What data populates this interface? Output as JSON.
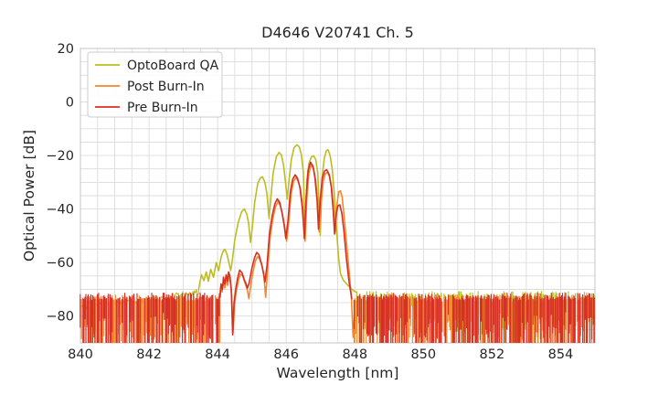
{
  "chart_data": {
    "type": "line",
    "title": "D4646 V20741 Ch. 5",
    "xlabel": "Wavelength [nm]",
    "ylabel": "Optical Power [dB]",
    "xlim": [
      840,
      855
    ],
    "ylim": [
      -90,
      20
    ],
    "x_ticks": [
      840,
      842,
      844,
      846,
      848,
      850,
      852,
      854
    ],
    "y_ticks": [
      20,
      0,
      -20,
      -40,
      -60,
      -80
    ],
    "minor_grid": {
      "x_step": 0.5,
      "y_step": 5
    },
    "grid_color": "#dcdcdc",
    "spine_color": "#c6c6c6",
    "background": "#ffffff",
    "legend": {
      "position": "upper-left"
    },
    "series": [
      {
        "name": "OptoBoard QA",
        "color": "#bcbd22",
        "curve": [
          [
            843.45,
            -69.5
          ],
          [
            843.53,
            -64.5
          ],
          [
            843.6,
            -66.8
          ],
          [
            843.67,
            -63.5
          ],
          [
            843.73,
            -67.0
          ],
          [
            843.8,
            -62.5
          ],
          [
            843.88,
            -65.5
          ],
          [
            843.96,
            -60.0
          ],
          [
            844.03,
            -63.0
          ],
          [
            844.1,
            -58.0
          ],
          [
            844.16,
            -55.8
          ],
          [
            844.21,
            -55.0
          ],
          [
            844.27,
            -56.8
          ],
          [
            844.33,
            -60.0
          ],
          [
            844.38,
            -63.0
          ],
          [
            844.43,
            -59.0
          ],
          [
            844.5,
            -51.5
          ],
          [
            844.6,
            -45.0
          ],
          [
            844.7,
            -41.0
          ],
          [
            844.78,
            -40.0
          ],
          [
            844.85,
            -41.8
          ],
          [
            844.9,
            -45.0
          ],
          [
            844.96,
            -52.5
          ],
          [
            845.01,
            -47.0
          ],
          [
            845.08,
            -37.5
          ],
          [
            845.17,
            -30.5
          ],
          [
            845.25,
            -28.3
          ],
          [
            845.31,
            -28.0
          ],
          [
            845.38,
            -30.0
          ],
          [
            845.44,
            -34.5
          ],
          [
            845.5,
            -43.5
          ],
          [
            845.55,
            -36.0
          ],
          [
            845.62,
            -26.5
          ],
          [
            845.71,
            -20.5
          ],
          [
            845.79,
            -18.8
          ],
          [
            845.86,
            -19.8
          ],
          [
            845.92,
            -23.5
          ],
          [
            845.98,
            -30.0
          ],
          [
            846.03,
            -36.3
          ],
          [
            846.08,
            -29.5
          ],
          [
            846.15,
            -21.5
          ],
          [
            846.23,
            -17.0
          ],
          [
            846.31,
            -16.0
          ],
          [
            846.38,
            -16.8
          ],
          [
            846.44,
            -19.5
          ],
          [
            846.5,
            -26.5
          ],
          [
            846.55,
            -50.5
          ],
          [
            846.6,
            -29.5
          ],
          [
            846.66,
            -23.0
          ],
          [
            846.73,
            -20.6
          ],
          [
            846.8,
            -20.1
          ],
          [
            846.86,
            -21.5
          ],
          [
            846.92,
            -26.5
          ],
          [
            846.99,
            -49.8
          ],
          [
            847.05,
            -27.5
          ],
          [
            847.11,
            -21.0
          ],
          [
            847.17,
            -18.2
          ],
          [
            847.22,
            -17.9
          ],
          [
            847.28,
            -20.0
          ],
          [
            847.34,
            -25.0
          ],
          [
            847.4,
            -34.0
          ],
          [
            847.46,
            -46.0
          ],
          [
            847.52,
            -57.5
          ],
          [
            847.58,
            -64.0
          ],
          [
            847.66,
            -66.5
          ],
          [
            847.76,
            -68.0
          ],
          [
            847.9,
            -69.8
          ],
          [
            848.02,
            -71.0
          ]
        ],
        "noise": [
          {
            "kind": "floor-line",
            "from": 840.0,
            "to": 843.45,
            "level_start": -76.2,
            "level_end": -71.0,
            "jitter": 1.2,
            "spike_prob": 0.05,
            "spike_depth": 7,
            "connect_to": -69.5,
            "seed": 101
          },
          {
            "kind": "spikes",
            "from": 848.02,
            "to": 855.0,
            "top": -72.8,
            "top_jitter": 2.2,
            "depth_min": 3,
            "depth_max": 15,
            "full_prob": 0.12,
            "density": 0.55,
            "seed": 102
          }
        ]
      },
      {
        "name": "Post Burn-In",
        "color": "#f6862d",
        "curve": [
          [
            844.05,
            -74.0
          ],
          [
            844.09,
            -69.0
          ],
          [
            844.13,
            -71.0
          ],
          [
            844.17,
            -67.0
          ],
          [
            844.21,
            -69.5
          ],
          [
            844.25,
            -66.0
          ],
          [
            844.29,
            -68.5
          ],
          [
            844.33,
            -65.0
          ],
          [
            844.37,
            -67.0
          ],
          [
            844.41,
            -72.0
          ],
          [
            844.45,
            -86.0
          ],
          [
            844.49,
            -76.0
          ],
          [
            844.54,
            -71.0
          ],
          [
            844.6,
            -67.0
          ],
          [
            844.66,
            -64.3
          ],
          [
            844.73,
            -65.0
          ],
          [
            844.81,
            -68.0
          ],
          [
            844.87,
            -70.5
          ],
          [
            844.91,
            -73.5
          ],
          [
            844.96,
            -69.0
          ],
          [
            845.03,
            -63.5
          ],
          [
            845.1,
            -59.5
          ],
          [
            845.16,
            -57.8
          ],
          [
            845.22,
            -58.5
          ],
          [
            845.29,
            -61.0
          ],
          [
            845.35,
            -65.0
          ],
          [
            845.4,
            -73.0
          ],
          [
            845.46,
            -62.5
          ],
          [
            845.53,
            -50.5
          ],
          [
            845.61,
            -43.5
          ],
          [
            845.69,
            -39.0
          ],
          [
            845.76,
            -37.3
          ],
          [
            845.83,
            -38.8
          ],
          [
            845.9,
            -42.5
          ],
          [
            845.96,
            -47.0
          ],
          [
            846.01,
            -52.0
          ],
          [
            846.07,
            -45.5
          ],
          [
            846.14,
            -34.5
          ],
          [
            846.21,
            -29.8
          ],
          [
            846.28,
            -28.2
          ],
          [
            846.35,
            -29.5
          ],
          [
            846.42,
            -33.0
          ],
          [
            846.49,
            -40.5
          ],
          [
            846.55,
            -52.0
          ],
          [
            846.6,
            -36.5
          ],
          [
            846.66,
            -26.5
          ],
          [
            846.73,
            -23.5
          ],
          [
            846.8,
            -25.0
          ],
          [
            846.86,
            -29.5
          ],
          [
            846.92,
            -38.0
          ],
          [
            846.96,
            -48.5
          ],
          [
            847.02,
            -37.5
          ],
          [
            847.08,
            -29.5
          ],
          [
            847.14,
            -26.8
          ],
          [
            847.2,
            -26.2
          ],
          [
            847.27,
            -28.0
          ],
          [
            847.33,
            -32.5
          ],
          [
            847.39,
            -41.5
          ],
          [
            847.43,
            -48.5
          ],
          [
            847.48,
            -38.5
          ],
          [
            847.53,
            -33.6
          ],
          [
            847.58,
            -33.2
          ],
          [
            847.63,
            -35.5
          ],
          [
            847.69,
            -43.0
          ],
          [
            847.76,
            -53.0
          ],
          [
            847.83,
            -63.0
          ],
          [
            847.9,
            -73.0
          ],
          [
            847.95,
            -88.0
          ],
          [
            847.99,
            -79.0
          ]
        ],
        "noise": [
          {
            "kind": "spikes",
            "from": 840.0,
            "to": 844.06,
            "top": -74.6,
            "top_jitter": 2.6,
            "depth_min": 7,
            "depth_max": 16,
            "full_prob": 0.5,
            "density": 0.88,
            "seed": 201
          },
          {
            "kind": "spikes",
            "from": 847.97,
            "to": 855.0,
            "top": -74.6,
            "top_jitter": 2.6,
            "depth_min": 7,
            "depth_max": 16,
            "full_prob": 0.5,
            "density": 0.88,
            "seed": 202
          }
        ]
      },
      {
        "name": "Pre Burn-In",
        "color": "#d62f27",
        "curve": [
          [
            844.07,
            -73.0
          ],
          [
            844.1,
            -68.0
          ],
          [
            844.14,
            -70.0
          ],
          [
            844.17,
            -65.5
          ],
          [
            844.21,
            -68.0
          ],
          [
            844.25,
            -64.5
          ],
          [
            844.29,
            -67.0
          ],
          [
            844.32,
            -63.5
          ],
          [
            844.36,
            -65.0
          ],
          [
            844.4,
            -70.0
          ],
          [
            844.44,
            -87.0
          ],
          [
            844.48,
            -75.0
          ],
          [
            844.52,
            -70.5
          ],
          [
            844.58,
            -66.0
          ],
          [
            844.64,
            -62.8
          ],
          [
            844.71,
            -63.8
          ],
          [
            844.78,
            -66.5
          ],
          [
            844.83,
            -68.0
          ],
          [
            844.87,
            -69.5
          ],
          [
            844.92,
            -67.5
          ],
          [
            845.0,
            -62.0
          ],
          [
            845.08,
            -58.0
          ],
          [
            845.14,
            -56.2
          ],
          [
            845.2,
            -57.0
          ],
          [
            845.27,
            -60.0
          ],
          [
            845.33,
            -63.5
          ],
          [
            845.38,
            -67.3
          ],
          [
            845.44,
            -61.0
          ],
          [
            845.51,
            -49.5
          ],
          [
            845.59,
            -42.5
          ],
          [
            845.67,
            -38.0
          ],
          [
            845.74,
            -36.2
          ],
          [
            845.81,
            -37.5
          ],
          [
            845.88,
            -41.5
          ],
          [
            845.94,
            -46.0
          ],
          [
            845.99,
            -51.0
          ],
          [
            846.05,
            -44.5
          ],
          [
            846.12,
            -33.5
          ],
          [
            846.19,
            -28.8
          ],
          [
            846.26,
            -27.2
          ],
          [
            846.33,
            -28.5
          ],
          [
            846.4,
            -32.0
          ],
          [
            846.47,
            -39.5
          ],
          [
            846.53,
            -51.0
          ],
          [
            846.58,
            -35.5
          ],
          [
            846.64,
            -25.5
          ],
          [
            846.71,
            -22.5
          ],
          [
            846.78,
            -24.0
          ],
          [
            846.84,
            -28.5
          ],
          [
            846.9,
            -37.0
          ],
          [
            846.94,
            -47.5
          ],
          [
            846.99,
            -36.5
          ],
          [
            847.05,
            -28.5
          ],
          [
            847.12,
            -25.8
          ],
          [
            847.18,
            -25.3
          ],
          [
            847.25,
            -27.0
          ],
          [
            847.31,
            -31.5
          ],
          [
            847.37,
            -40.5
          ],
          [
            847.41,
            -49.3
          ],
          [
            847.46,
            -41.5
          ],
          [
            847.51,
            -38.8
          ],
          [
            847.56,
            -38.4
          ],
          [
            847.62,
            -41.5
          ],
          [
            847.68,
            -48.0
          ],
          [
            847.75,
            -58.0
          ],
          [
            847.83,
            -67.0
          ],
          [
            847.91,
            -73.5
          ]
        ],
        "noise": [
          {
            "kind": "spikes",
            "from": 840.0,
            "to": 844.08,
            "top": -73.9,
            "top_jitter": 2.7,
            "depth_min": 7,
            "depth_max": 16,
            "full_prob": 0.55,
            "density": 0.8,
            "seed": 301
          },
          {
            "kind": "spikes",
            "from": 847.92,
            "to": 855.0,
            "top": -73.9,
            "top_jitter": 2.7,
            "depth_min": 7,
            "depth_max": 16,
            "full_prob": 0.55,
            "density": 0.8,
            "seed": 302
          }
        ]
      }
    ]
  }
}
